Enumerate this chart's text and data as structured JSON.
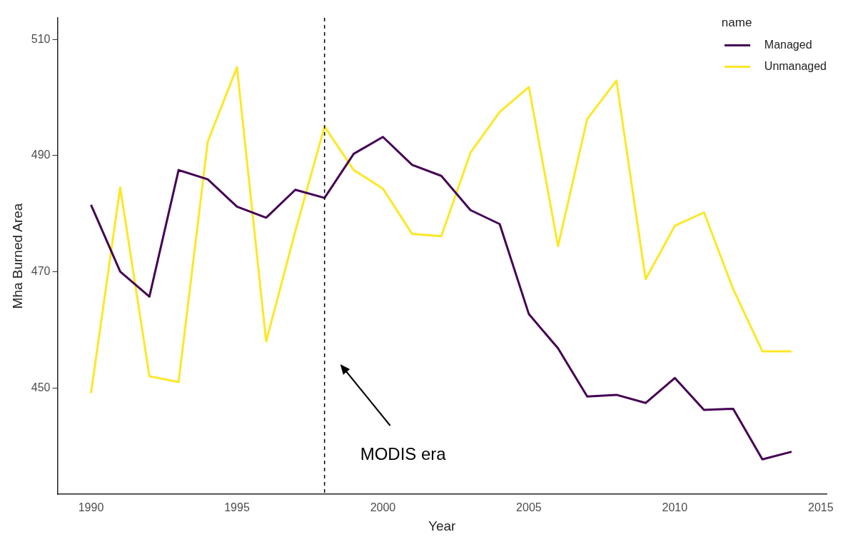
{
  "chart_data": {
    "type": "line",
    "xlabel": "Year",
    "ylabel": "Mha Burned Area",
    "legend_title": "name",
    "legend": "top right",
    "grid": false,
    "marker": "none",
    "line_style": "solid",
    "x": [
      1990,
      1991,
      1992,
      1993,
      1994,
      1995,
      1996,
      1997,
      1998,
      1999,
      2000,
      2001,
      2002,
      2003,
      2004,
      2005,
      2006,
      2007,
      2008,
      2009,
      2010,
      2011,
      2012,
      2013,
      2014
    ],
    "xlim": [
      1988.85,
      2015.2
    ],
    "xticks": [
      1990,
      1995,
      2000,
      2005,
      2010,
      2015
    ],
    "ylim": [
      431.7,
      513.7
    ],
    "yticks": [
      450,
      470,
      490,
      510
    ],
    "series": [
      {
        "name": "Managed",
        "color": "#440154",
        "values": [
          481.5,
          470,
          465.7,
          487.5,
          485.9,
          481.2,
          479.3,
          484.1,
          482.7,
          490.3,
          493.2,
          488.4,
          486.5,
          480.6,
          478.2,
          462.7,
          456.8,
          448.5,
          448.8,
          447.4,
          451.7,
          446.2,
          446.4,
          437.7,
          439
        ]
      },
      {
        "name": "Unmanaged",
        "color": "#fde725",
        "values": [
          449.1,
          484.5,
          452,
          451,
          492.4,
          505.2,
          458,
          477,
          495,
          487.5,
          484.3,
          476.5,
          476.1,
          490.5,
          497.5,
          501.8,
          474.4,
          496.3,
          502.9,
          468.7,
          477.9,
          480.2,
          467,
          456.3,
          456.3
        ]
      }
    ],
    "ref_lines": [
      {
        "axis": "x",
        "value": 1998,
        "line_style": "dashed",
        "color": "#000000"
      }
    ],
    "annotations": [
      "MODIS era"
    ]
  }
}
